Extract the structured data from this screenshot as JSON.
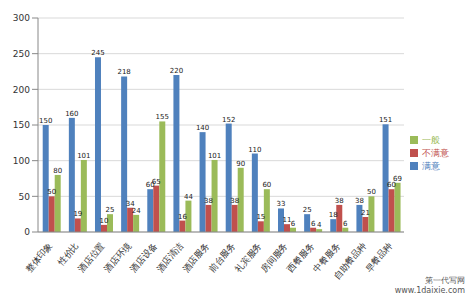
{
  "chart_data": {
    "type": "bar",
    "categories": [
      "整体印象",
      "性价比",
      "酒店位置",
      "酒店环境",
      "酒店设备",
      "酒店清洁",
      "酒店服务",
      "前台服务",
      "礼宾服务",
      "房间服务",
      "西餐服务",
      "中餐服务",
      "自助餐品种",
      "早餐品种"
    ],
    "series": [
      {
        "name": "满意",
        "color": "#4f81bd",
        "values": [
          150,
          160,
          245,
          218,
          60,
          220,
          140,
          152,
          110,
          33,
          25,
          18,
          38,
          151
        ]
      },
      {
        "name": "不满意",
        "color": "#c0504d",
        "values": [
          50,
          19,
          10,
          34,
          65,
          16,
          38,
          38,
          15,
          11,
          6,
          38,
          21,
          60
        ]
      },
      {
        "name": "一般",
        "color": "#9bbb59",
        "values": [
          80,
          101,
          25,
          24,
          155,
          44,
          101,
          90,
          60,
          6,
          4,
          6,
          50,
          69
        ]
      }
    ],
    "ylim": [
      0,
      300
    ],
    "yticks": [
      0,
      50,
      100,
      150,
      200,
      250,
      300
    ],
    "grid": true,
    "legend": "right",
    "data_labels": true,
    "annotations": [
      "第一代写网",
      "www.1daixie.com"
    ]
  }
}
